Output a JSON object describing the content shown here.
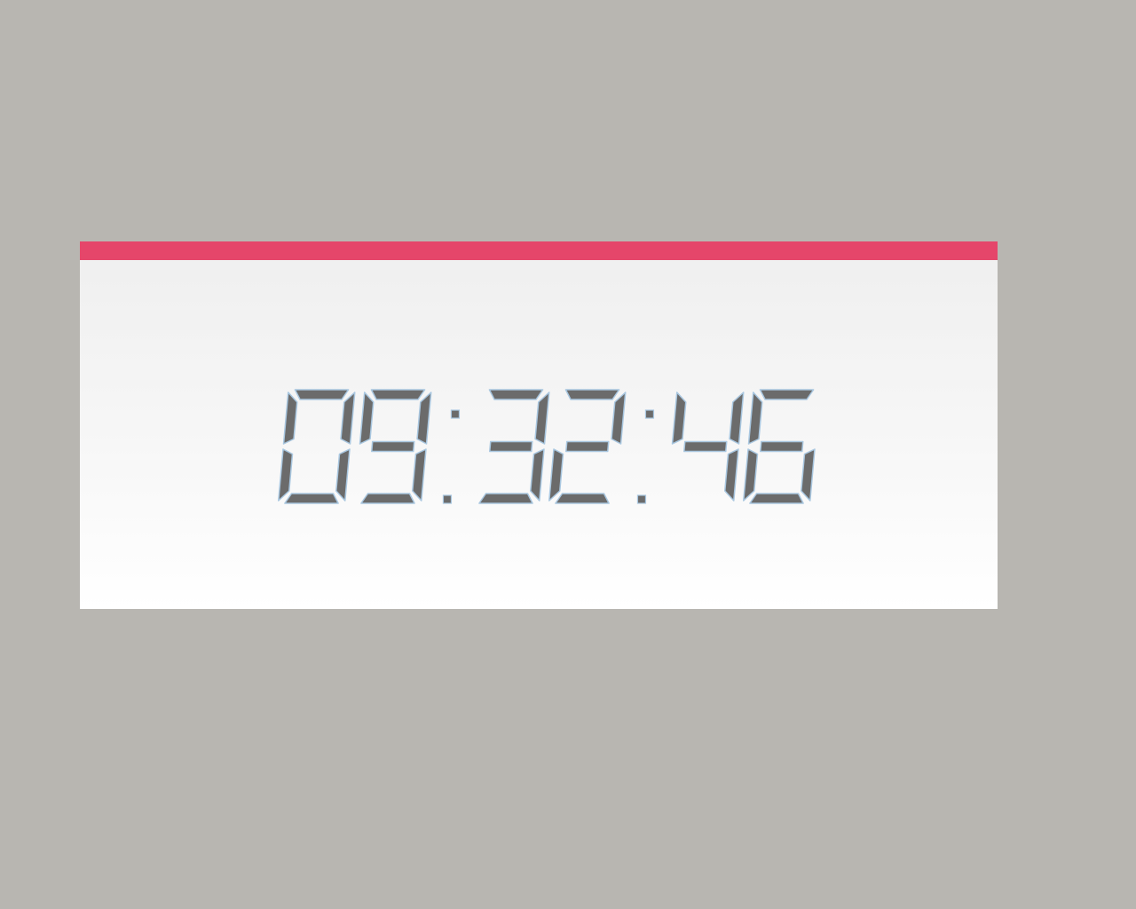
{
  "clock": {
    "time": "09:32:46",
    "accent_color": "#e5466a",
    "digit_color": "#6b6b6b",
    "digit_highlight_color": "#a9c7e0"
  }
}
